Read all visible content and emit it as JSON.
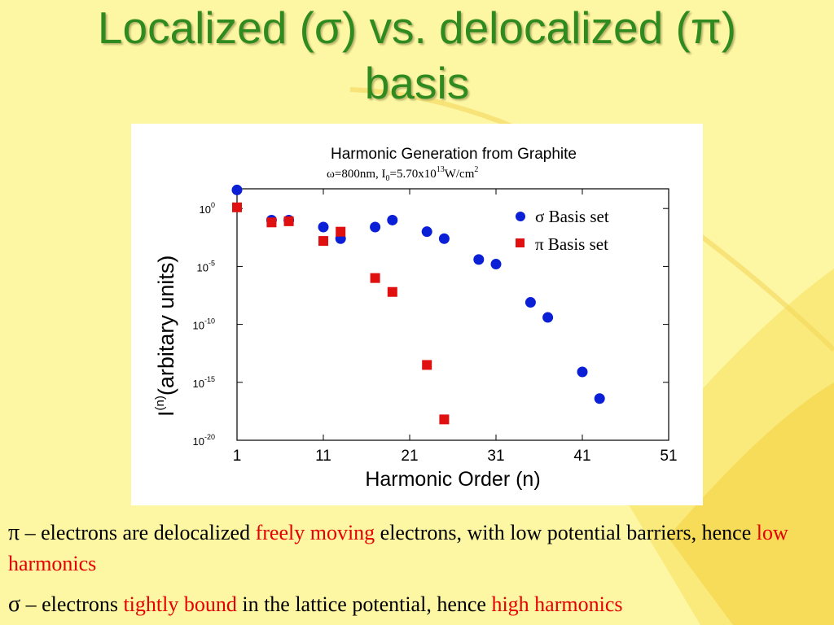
{
  "slide": {
    "title_line1": "Localized (σ) vs. delocalized (π)",
    "title_line2": "basis"
  },
  "chart_data": {
    "type": "scatter",
    "title": "Harmonic Generation from Graphite",
    "subtitle": "ω=800nm, I",
    "subtitle_sub": "0",
    "subtitle_mid": "=5.70x10",
    "subtitle_sup": "13",
    "subtitle_end": "W/cm",
    "subtitle_sup2": "2",
    "xlabel": "Harmonic Order (n)",
    "ylabel_main": "I",
    "ylabel_sup": "(n)",
    "ylabel_rest": "(arbitary units)",
    "xlim": [
      1,
      51
    ],
    "ylim_log10": [
      -20,
      1.5
    ],
    "y_scale": "log",
    "xticks": [
      1,
      11,
      21,
      31,
      41,
      51
    ],
    "yticks": [
      {
        "value": 0,
        "label": "10",
        "sup": "0"
      },
      {
        "value": -5,
        "label": "10",
        "sup": "-5"
      },
      {
        "value": -10,
        "label": "10",
        "sup": "-10"
      },
      {
        "value": -15,
        "label": "10",
        "sup": "-15"
      },
      {
        "value": -20,
        "label": "10",
        "sup": "-20"
      }
    ],
    "legend_position": "top-right",
    "series": [
      {
        "name": "σ Basis set",
        "color": "#0a1fd6",
        "marker": "circle",
        "points": [
          {
            "x": 1,
            "log10y": 1.6
          },
          {
            "x": 5,
            "log10y": -1.0
          },
          {
            "x": 7,
            "log10y": -1.0
          },
          {
            "x": 11,
            "log10y": -1.6
          },
          {
            "x": 13,
            "log10y": -2.6
          },
          {
            "x": 17,
            "log10y": -1.6
          },
          {
            "x": 19,
            "log10y": -1.0
          },
          {
            "x": 23,
            "log10y": -2.0
          },
          {
            "x": 25,
            "log10y": -2.6
          },
          {
            "x": 29,
            "log10y": -4.4
          },
          {
            "x": 31,
            "log10y": -4.8
          },
          {
            "x": 35,
            "log10y": -8.1
          },
          {
            "x": 37,
            "log10y": -9.4
          },
          {
            "x": 41,
            "log10y": -14.1
          },
          {
            "x": 43,
            "log10y": -16.4
          }
        ]
      },
      {
        "name": "π Basis set",
        "color": "#e01010",
        "marker": "square",
        "points": [
          {
            "x": 1,
            "log10y": 0.1
          },
          {
            "x": 5,
            "log10y": -1.2
          },
          {
            "x": 7,
            "log10y": -1.1
          },
          {
            "x": 11,
            "log10y": -2.8
          },
          {
            "x": 13,
            "log10y": -2.0
          },
          {
            "x": 17,
            "log10y": -6.0
          },
          {
            "x": 19,
            "log10y": -7.2
          },
          {
            "x": 23,
            "log10y": -13.5
          },
          {
            "x": 25,
            "log10y": -18.2
          }
        ]
      }
    ]
  },
  "bullets": [
    {
      "symbol": "π",
      "text1": " – electrons are delocalized ",
      "red1": "freely moving",
      "text2": " electrons, with low potential barriers, hence ",
      "red2": "low harmonics"
    },
    {
      "symbol": "σ",
      "text1": " – electrons ",
      "red1": "tightly bound",
      "text2": " in the lattice potential, hence ",
      "red2": "high harmonics"
    }
  ],
  "colors": {
    "background": "#fdf6a3",
    "title": "#2f8a1f",
    "emphasis": "#e60000"
  }
}
